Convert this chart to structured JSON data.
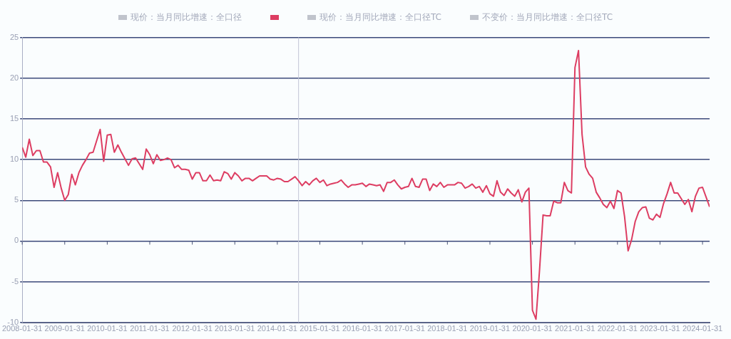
{
  "chart_data": {
    "type": "line",
    "legend": "top",
    "grid": "y",
    "marker": "none",
    "line_style": "solid",
    "xlim": [
      "2008-01",
      "2024-03"
    ],
    "xticks": [
      {
        "value": "2008-01",
        "label": "2008-01-31"
      },
      {
        "value": "2009-01",
        "label": "2009-01-31"
      },
      {
        "value": "2010-01",
        "label": "2010-01-31"
      },
      {
        "value": "2011-01",
        "label": "2011-01-31"
      },
      {
        "value": "2012-01",
        "label": "2012-01-31"
      },
      {
        "value": "2013-01",
        "label": "2013-01-31"
      },
      {
        "value": "2014-01",
        "label": "2014-01-31"
      },
      {
        "value": "2015-01",
        "label": "2015-01-31"
      },
      {
        "value": "2016-01",
        "label": "2016-01-31"
      },
      {
        "value": "2017-01",
        "label": "2017-01-31"
      },
      {
        "value": "2018-01",
        "label": "2018-01-31"
      },
      {
        "value": "2019-01",
        "label": "2019-01-31"
      },
      {
        "value": "2020-01",
        "label": "2020-01-31"
      },
      {
        "value": "2021-01",
        "label": "2021-01-31"
      },
      {
        "value": "2022-01",
        "label": "2022-01-31"
      },
      {
        "value": "2023-01",
        "label": "2023-01-31"
      },
      {
        "value": "2024-01",
        "label": "2024-01-31"
      }
    ],
    "ylim": [
      -10,
      25
    ],
    "yticks": [
      -10,
      -5,
      0,
      5,
      10,
      15,
      20,
      25
    ],
    "ref_lines": [
      {
        "axis": "x",
        "value": "2014-07",
        "color": "#c0c4d6"
      }
    ],
    "x": [
      "2008-01",
      "2008-02",
      "2008-03",
      "2008-04",
      "2008-05",
      "2008-06",
      "2008-07",
      "2008-08",
      "2008-09",
      "2008-10",
      "2008-11",
      "2008-12",
      "2009-01",
      "2009-02",
      "2009-03",
      "2009-04",
      "2009-05",
      "2009-06",
      "2009-07",
      "2009-08",
      "2009-09",
      "2009-10",
      "2009-11",
      "2009-12",
      "2010-01",
      "2010-02",
      "2010-03",
      "2010-04",
      "2010-05",
      "2010-06",
      "2010-07",
      "2010-08",
      "2010-09",
      "2010-10",
      "2010-11",
      "2010-12",
      "2011-01",
      "2011-02",
      "2011-03",
      "2011-04",
      "2011-05",
      "2011-06",
      "2011-07",
      "2011-08",
      "2011-09",
      "2011-10",
      "2011-11",
      "2011-12",
      "2012-01",
      "2012-02",
      "2012-03",
      "2012-04",
      "2012-05",
      "2012-06",
      "2012-07",
      "2012-08",
      "2012-09",
      "2012-10",
      "2012-11",
      "2012-12",
      "2013-01",
      "2013-02",
      "2013-03",
      "2013-04",
      "2013-05",
      "2013-06",
      "2013-07",
      "2013-08",
      "2013-09",
      "2013-10",
      "2013-11",
      "2013-12",
      "2014-01",
      "2014-02",
      "2014-03",
      "2014-04",
      "2014-05",
      "2014-06",
      "2014-07",
      "2014-08",
      "2014-09",
      "2014-10",
      "2014-11",
      "2014-12",
      "2015-01",
      "2015-02",
      "2015-03",
      "2015-04",
      "2015-05",
      "2015-06",
      "2015-07",
      "2015-08",
      "2015-09",
      "2015-10",
      "2015-11",
      "2015-12",
      "2016-01",
      "2016-02",
      "2016-03",
      "2016-04",
      "2016-05",
      "2016-06",
      "2016-07",
      "2016-08",
      "2016-09",
      "2016-10",
      "2016-11",
      "2016-12",
      "2017-01",
      "2017-02",
      "2017-03",
      "2017-04",
      "2017-05",
      "2017-06",
      "2017-07",
      "2017-08",
      "2017-09",
      "2017-10",
      "2017-11",
      "2017-12",
      "2018-01",
      "2018-02",
      "2018-03",
      "2018-04",
      "2018-05",
      "2018-06",
      "2018-07",
      "2018-08",
      "2018-09",
      "2018-10",
      "2018-11",
      "2018-12",
      "2019-01",
      "2019-02",
      "2019-03",
      "2019-04",
      "2019-05",
      "2019-06",
      "2019-07",
      "2019-08",
      "2019-09",
      "2019-10",
      "2019-11",
      "2019-12",
      "2020-01",
      "2020-02",
      "2020-03",
      "2020-04",
      "2020-05",
      "2020-06",
      "2020-07",
      "2020-08",
      "2020-09",
      "2020-10",
      "2020-11",
      "2020-12",
      "2021-01",
      "2021-02",
      "2021-03",
      "2021-04",
      "2021-05",
      "2021-06",
      "2021-07",
      "2021-08",
      "2021-09",
      "2021-10",
      "2021-11",
      "2021-12",
      "2022-01",
      "2022-02",
      "2022-03",
      "2022-04",
      "2022-05",
      "2022-06",
      "2022-07",
      "2022-08",
      "2022-09",
      "2022-10",
      "2022-11",
      "2022-12",
      "2023-01",
      "2023-02",
      "2023-03",
      "2023-04",
      "2023-05",
      "2023-06",
      "2023-07",
      "2023-08",
      "2023-09",
      "2023-10",
      "2023-11",
      "2023-12",
      "2024-01",
      "2024-02",
      "2024-03"
    ],
    "series": [
      {
        "name": "现价：当月同比增速：全口径",
        "color": "#c0c4cc",
        "values": [
          null,
          null,
          null,
          null,
          null,
          null,
          null,
          null,
          null,
          null,
          null,
          null,
          null,
          null,
          null,
          null,
          null,
          null,
          null,
          null,
          null,
          null,
          null,
          null,
          null,
          null,
          null,
          null,
          null,
          null,
          null,
          null,
          null,
          null,
          null,
          null,
          null,
          null,
          null,
          null,
          null,
          null,
          null,
          null,
          null,
          null,
          null,
          null,
          null,
          null,
          null,
          null,
          null,
          null,
          null,
          null,
          null,
          null,
          null,
          null,
          null,
          null,
          null,
          null,
          null,
          null,
          null,
          null,
          null,
          null,
          null,
          null,
          null,
          null,
          null,
          null,
          null,
          null,
          null,
          null,
          null,
          null,
          null,
          null,
          null,
          null,
          null,
          null,
          null,
          null,
          null,
          null,
          null,
          null,
          null,
          null,
          null,
          null,
          null,
          null,
          null,
          null,
          null,
          null,
          null,
          null,
          null,
          null,
          null,
          null,
          null,
          null,
          null,
          null,
          null,
          null,
          null,
          null,
          null,
          null,
          null,
          null,
          null,
          null,
          null,
          null,
          null,
          null,
          null,
          null,
          null,
          null,
          null,
          null,
          null,
          null,
          null,
          null,
          null,
          null,
          null,
          null,
          null,
          null,
          null,
          null,
          null,
          null,
          null,
          null,
          null,
          null,
          null,
          null,
          null,
          null,
          null,
          null,
          null,
          null,
          null,
          null,
          null,
          null,
          null,
          null,
          null,
          null,
          null,
          null,
          null,
          null,
          null,
          null,
          null,
          null,
          null,
          null,
          null,
          null,
          null,
          null,
          null,
          null,
          null,
          null,
          null,
          null,
          null,
          null,
          null,
          null,
          null,
          null,
          null
        ]
      },
      {
        "color": "#dd3d62",
        "values": [
          11.5,
          10.3,
          12.5,
          10.5,
          11.1,
          11.1,
          9.7,
          9.7,
          9.1,
          6.6,
          8.4,
          6.5,
          5.0,
          5.7,
          8.2,
          6.9,
          8.4,
          9.3,
          10.0,
          10.8,
          10.9,
          12.3,
          13.7,
          9.8,
          13.0,
          13.1,
          10.9,
          11.8,
          10.9,
          10.1,
          9.3,
          10.1,
          10.2,
          9.5,
          8.8,
          11.3,
          10.6,
          9.5,
          10.6,
          9.9,
          10.0,
          10.2,
          10.0,
          9.0,
          9.3,
          8.8,
          8.8,
          8.7,
          7.6,
          8.4,
          8.4,
          7.4,
          7.4,
          8.1,
          7.4,
          7.5,
          7.4,
          8.5,
          8.3,
          7.6,
          8.4,
          8.0,
          7.4,
          7.7,
          7.7,
          7.4,
          7.7,
          8.0,
          8.0,
          8.0,
          7.6,
          7.5,
          7.7,
          7.6,
          7.3,
          7.3,
          7.6,
          7.9,
          7.4,
          6.8,
          7.3,
          6.9,
          7.4,
          7.7,
          7.2,
          7.5,
          6.8,
          7.0,
          7.1,
          7.2,
          7.5,
          7.0,
          6.6,
          6.9,
          6.9,
          7.0,
          7.1,
          6.7,
          7.0,
          6.9,
          6.8,
          6.9,
          6.1,
          7.2,
          7.2,
          7.5,
          6.9,
          6.4,
          6.6,
          6.7,
          7.7,
          6.7,
          6.6,
          7.6,
          7.6,
          6.2,
          7.0,
          6.7,
          7.2,
          6.6,
          6.9,
          6.9,
          6.9,
          7.2,
          7.1,
          6.5,
          6.7,
          7.0,
          6.5,
          6.7,
          6.0,
          6.8,
          5.8,
          5.5,
          7.4,
          6.0,
          5.6,
          6.4,
          5.9,
          5.5,
          6.3,
          4.8,
          6.0,
          6.5,
          -8.5,
          -9.6,
          -3.6,
          3.2,
          3.1,
          3.1,
          4.9,
          4.7,
          4.7,
          7.2,
          6.2,
          5.9,
          21.3,
          23.4,
          13.1,
          9.1,
          8.2,
          7.7,
          6.0,
          5.3,
          4.5,
          4.1,
          4.9,
          4.0,
          6.2,
          5.9,
          3.0,
          -1.2,
          0.2,
          2.4,
          3.6,
          4.1,
          4.2,
          2.8,
          2.6,
          3.3,
          2.9,
          4.6,
          5.8,
          7.2,
          5.9,
          5.9,
          5.2,
          4.5,
          5.1,
          3.6,
          5.5,
          6.5,
          6.6,
          5.4,
          4.2
        ]
      },
      {
        "name": "现价：当月同比增速：全口径TC",
        "color": "#c0c4cc",
        "values": [
          null,
          null,
          null,
          null,
          null,
          null,
          null,
          null,
          null,
          null,
          null,
          null,
          null,
          null,
          null,
          null,
          null,
          null,
          null,
          null,
          null,
          null,
          null,
          null,
          null,
          null,
          null,
          null,
          null,
          null,
          null,
          null,
          null,
          null,
          null,
          null,
          null,
          null,
          null,
          null,
          null,
          null,
          null,
          null,
          null,
          null,
          null,
          null,
          null,
          null,
          null,
          null,
          null,
          null,
          null,
          null,
          null,
          null,
          null,
          null,
          null,
          null,
          null,
          null,
          null,
          null,
          null,
          null,
          null,
          null,
          null,
          null,
          null,
          null,
          null,
          null,
          null,
          null,
          null,
          null,
          null,
          null,
          null,
          null,
          null,
          null,
          null,
          null,
          null,
          null,
          null,
          null,
          null,
          null,
          null,
          null,
          null,
          null,
          null,
          null,
          null,
          null,
          null,
          null,
          null,
          null,
          null,
          null,
          null,
          null,
          null,
          null,
          null,
          null,
          null,
          null,
          null,
          null,
          null,
          null,
          null,
          null,
          null,
          null,
          null,
          null,
          null,
          null,
          null,
          null,
          null,
          null,
          null,
          null,
          null,
          null,
          null,
          null,
          null,
          null,
          null,
          null,
          null,
          null,
          null,
          null,
          null,
          null,
          null,
          null,
          null,
          null,
          null,
          null,
          null,
          null,
          null,
          null,
          null,
          null,
          null,
          null,
          null,
          null,
          null,
          null,
          null,
          null,
          null,
          null,
          null,
          null,
          null,
          null,
          null,
          null,
          null,
          null,
          null,
          null,
          null,
          null,
          null,
          null,
          null,
          null,
          null,
          null,
          null,
          null,
          null,
          null,
          null,
          null,
          null
        ]
      },
      {
        "name": "不变价：当月同比增速：全口径TC",
        "color": "#c0c4cc",
        "values": [
          null,
          null,
          null,
          null,
          null,
          null,
          null,
          null,
          null,
          null,
          null,
          null,
          null,
          null,
          null,
          null,
          null,
          null,
          null,
          null,
          null,
          null,
          null,
          null,
          null,
          null,
          null,
          null,
          null,
          null,
          null,
          null,
          null,
          null,
          null,
          null,
          null,
          null,
          null,
          null,
          null,
          null,
          null,
          null,
          null,
          null,
          null,
          null,
          null,
          null,
          null,
          null,
          null,
          null,
          null,
          null,
          null,
          null,
          null,
          null,
          null,
          null,
          null,
          null,
          null,
          null,
          null,
          null,
          null,
          null,
          null,
          null,
          null,
          null,
          null,
          null,
          null,
          null,
          null,
          null,
          null,
          null,
          null,
          null,
          null,
          null,
          null,
          null,
          null,
          null,
          null,
          null,
          null,
          null,
          null,
          null,
          null,
          null,
          null,
          null,
          null,
          null,
          null,
          null,
          null,
          null,
          null,
          null,
          null,
          null,
          null,
          null,
          null,
          null,
          null,
          null,
          null,
          null,
          null,
          null,
          null,
          null,
          null,
          null,
          null,
          null,
          null,
          null,
          null,
          null,
          null,
          null,
          null,
          null,
          null,
          null,
          null,
          null,
          null,
          null,
          null,
          null,
          null,
          null,
          null,
          null,
          null,
          null,
          null,
          null,
          null,
          null,
          null,
          null,
          null,
          null,
          null,
          null,
          null,
          null,
          null,
          null,
          null,
          null,
          null,
          null,
          null,
          null,
          null,
          null,
          null,
          null,
          null,
          null,
          null,
          null,
          null,
          null,
          null,
          null,
          null,
          null,
          null,
          null,
          null,
          null,
          null,
          null,
          null,
          null,
          null,
          null,
          null,
          null,
          null
        ]
      }
    ]
  }
}
